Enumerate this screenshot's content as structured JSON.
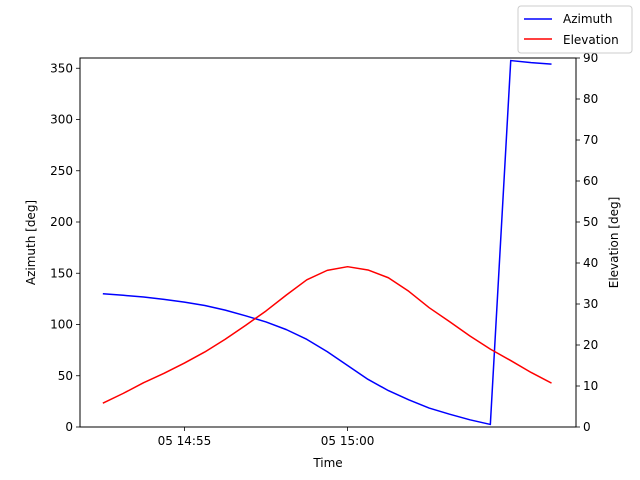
{
  "chart_data": {
    "type": "line",
    "xlabel": "Time",
    "x_tick_labels": [
      "05 14:55",
      "05 15:00"
    ],
    "x_ticks_minutes": [
      2.5,
      7.5
    ],
    "xlim_minutes": [
      -0.7,
      14.5
    ],
    "x": [
      0.0,
      0.625,
      1.25,
      1.875,
      2.5,
      3.125,
      3.75,
      4.375,
      5.0,
      5.625,
      6.25,
      6.875,
      7.5,
      8.125,
      8.75,
      9.375,
      10.0,
      10.625,
      11.25,
      11.875,
      12.5,
      13.125,
      13.75
    ],
    "left_axis": {
      "label": "Azimuth [deg]",
      "ylim": [
        0,
        360
      ],
      "ticks": [
        0,
        50,
        100,
        150,
        200,
        250,
        300,
        350
      ]
    },
    "right_axis": {
      "label": "Elevation [deg]",
      "ylim": [
        0,
        90
      ],
      "ticks": [
        0,
        10,
        20,
        30,
        40,
        50,
        60,
        70,
        80,
        90
      ]
    },
    "series": [
      {
        "name": "Azimuth",
        "axis": "left",
        "color": "#0000ff",
        "values": [
          130,
          128.5,
          126.8,
          124.5,
          121.8,
          118.5,
          114,
          108.5,
          102.5,
          95,
          85.5,
          73.5,
          60,
          46.5,
          35.5,
          26.5,
          18.5,
          12.5,
          7,
          2.5,
          357.5,
          355.5,
          354
        ]
      },
      {
        "name": "Elevation",
        "axis": "right",
        "color": "#ff0000",
        "values": [
          5.8,
          8.2,
          10.8,
          13.1,
          15.6,
          18.3,
          21.4,
          24.8,
          28.3,
          32.2,
          35.9,
          38.2,
          39.1,
          38.3,
          36.4,
          33.1,
          29.1,
          25.7,
          22.2,
          19,
          16.2,
          13.3,
          10.7
        ]
      }
    ],
    "legend_position": "top-right",
    "grid": false
  }
}
